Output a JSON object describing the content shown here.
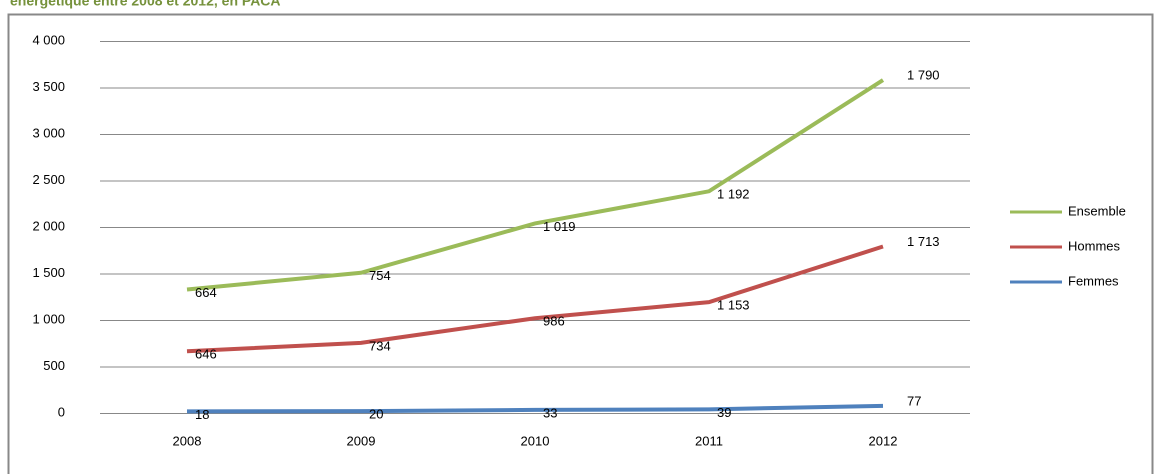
{
  "chart_data": {
    "type": "line",
    "stacked": true,
    "title": "énergétique entre 2008 et 2012, en PACA",
    "categories": [
      "2008",
      "2009",
      "2010",
      "2011",
      "2012"
    ],
    "series": [
      {
        "name": "Ensemble",
        "color": "#9bbb59",
        "values": [
          664,
          754,
          1019,
          1192,
          1790
        ],
        "value_labels": [
          "664",
          "754",
          "1 019",
          "1 192",
          "1 790"
        ]
      },
      {
        "name": "Hommes",
        "color": "#c0504d",
        "values": [
          646,
          734,
          986,
          1153,
          1713
        ],
        "value_labels": [
          "646",
          "734",
          "986",
          "1 153",
          "1 713"
        ]
      },
      {
        "name": "Femmes",
        "color": "#4f81bd",
        "values": [
          18,
          20,
          33,
          39,
          77
        ]
      }
    ],
    "ylim": [
      0,
      4000
    ],
    "yticks": [
      0,
      500,
      {
        "value": 1000,
        "label": "1 000"
      },
      {
        "value": 1500,
        "label": "1 500"
      },
      {
        "value": 2000,
        "label": "2 000"
      },
      {
        "value": 2500,
        "label": "2 500"
      },
      {
        "value": 3000,
        "label": "3 000"
      },
      {
        "value": 3500,
        "label": "3 500"
      },
      {
        "value": 4000,
        "label": "4 000"
      }
    ],
    "grid": true,
    "legend": "right"
  }
}
